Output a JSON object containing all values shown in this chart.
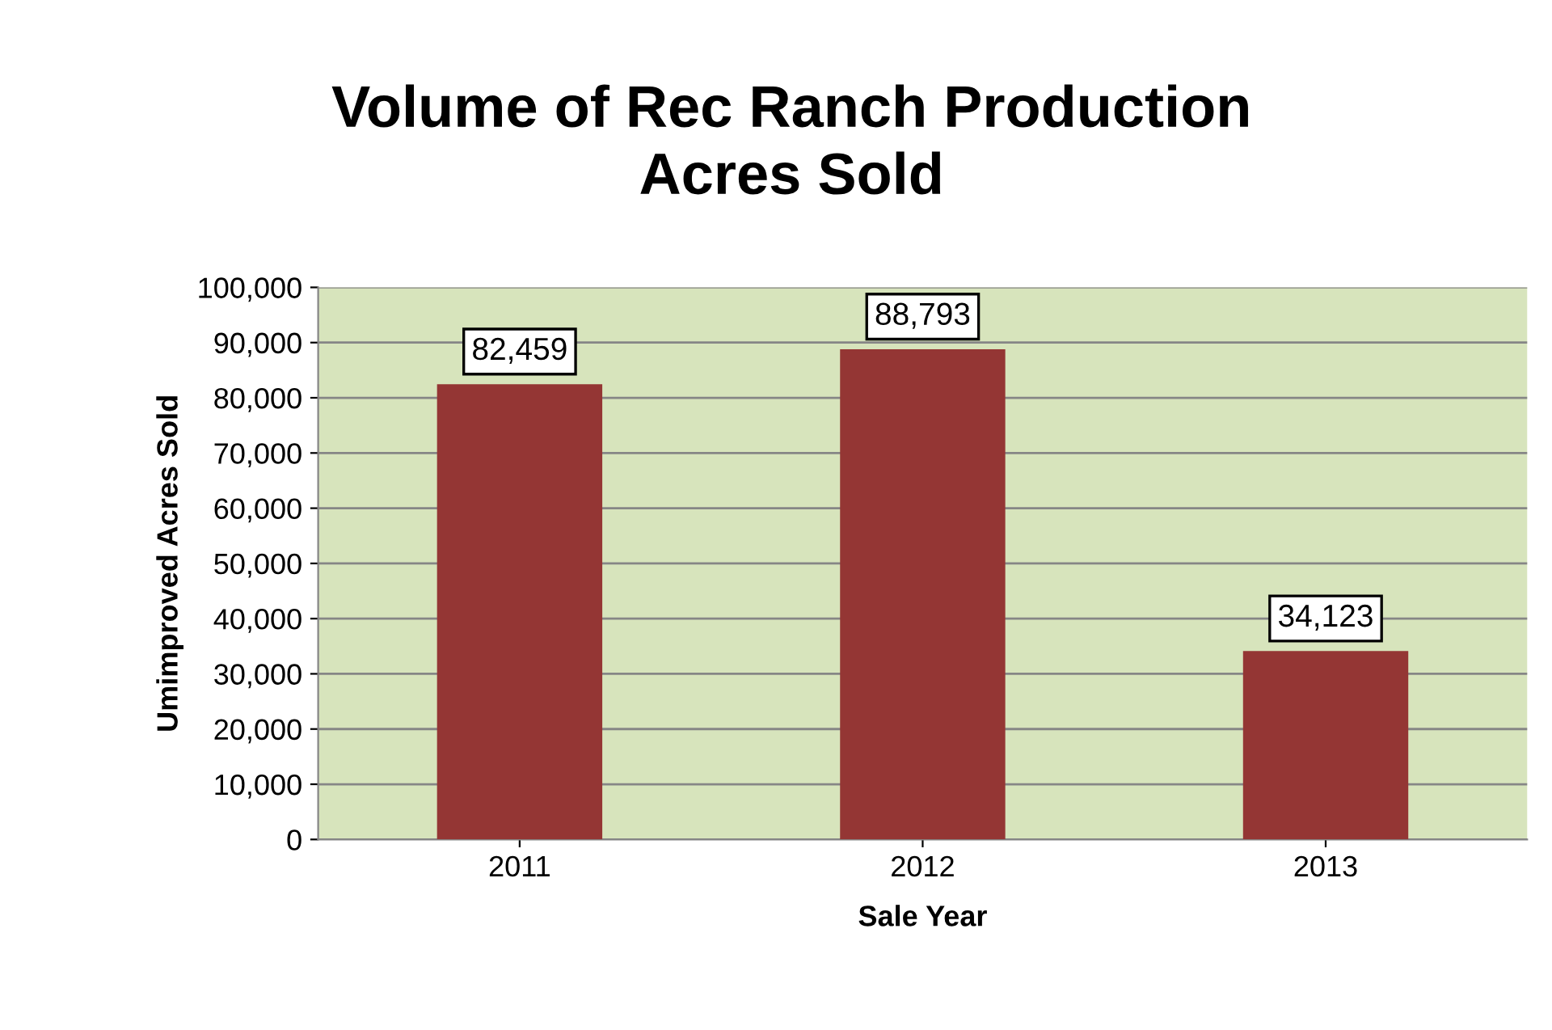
{
  "chart_data": {
    "type": "bar",
    "title": "Volume of Rec Ranch Production\nAcres Sold",
    "xlabel": "Sale Year",
    "ylabel": "Umimproved Acres Sold",
    "categories": [
      "2011",
      "2012",
      "2013"
    ],
    "values": [
      82459,
      88793,
      34123
    ],
    "value_labels": [
      "82,459",
      "88,793",
      "34,123"
    ],
    "color": "#943634",
    "grid": "y",
    "legend": false,
    "ylim": [
      0,
      100000
    ],
    "yticks": [
      0,
      {
        "value": 10000,
        "label": "10,000"
      },
      {
        "value": 20000,
        "label": "20,000"
      },
      {
        "value": 30000,
        "label": "30,000"
      },
      {
        "value": 40000,
        "label": "40,000"
      },
      {
        "value": 50000,
        "label": "50,000"
      },
      {
        "value": 60000,
        "label": "60,000"
      },
      {
        "value": 70000,
        "label": "70,000"
      },
      {
        "value": 80000,
        "label": "80,000"
      },
      {
        "value": 90000,
        "label": "90,000"
      },
      {
        "value": 100000,
        "label": "100,000"
      }
    ]
  }
}
